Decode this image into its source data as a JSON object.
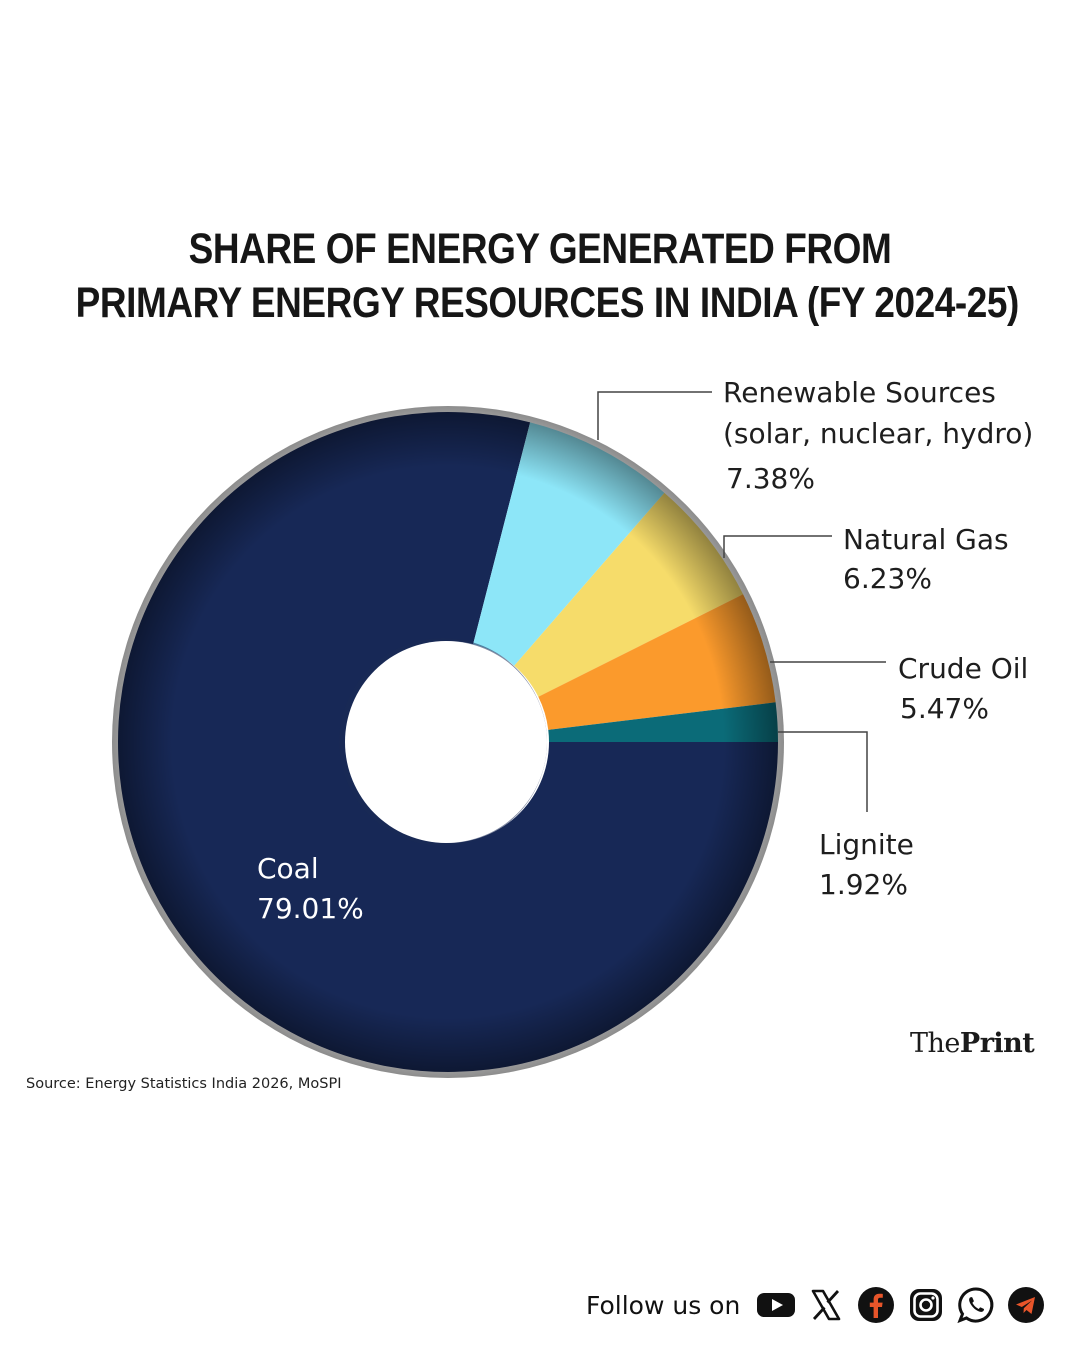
{
  "title_lines": [
    "SHARE OF ENERGY GENERATED FROM",
    "PRIMARY ENERGY RESOURCES IN INDIA (FY 2024-25)"
  ],
  "chart_data": {
    "type": "pie",
    "donut": true,
    "title": "SHARE OF ENERGY GENERATED FROM PRIMARY ENERGY RESOURCES IN INDIA (FY 2024-25)",
    "slices": [
      {
        "name": "Coal",
        "label_lines": [
          "Coal"
        ],
        "value": 79.01,
        "value_label": "79.01%",
        "color": "#172856"
      },
      {
        "name": "Renewable Sources (solar, nuclear, hydro)",
        "label_lines": [
          "Renewable Sources",
          "(solar, nuclear, hydro)"
        ],
        "value": 7.38,
        "value_label": "7.38%",
        "color": "#8de6f8"
      },
      {
        "name": "Natural Gas",
        "label_lines": [
          "Natural Gas"
        ],
        "value": 6.23,
        "value_label": "6.23%",
        "color": "#f6dc6a"
      },
      {
        "name": "Crude Oil",
        "label_lines": [
          "Crude Oil"
        ],
        "value": 5.47,
        "value_label": "5.47%",
        "color": "#fb9a2c"
      },
      {
        "name": "Lignite",
        "label_lines": [
          "Lignite"
        ],
        "value": 1.92,
        "value_label": "1.92%",
        "color": "#0b6b78"
      }
    ]
  },
  "source": "Source: Energy Statistics India 2026, MoSPI",
  "brand": {
    "part1": "The",
    "part2": "Print"
  },
  "follow_text": "Follow us on",
  "social_icons": [
    "youtube-icon",
    "x-icon",
    "facebook-icon",
    "instagram-icon",
    "whatsapp-icon",
    "telegram-icon"
  ]
}
